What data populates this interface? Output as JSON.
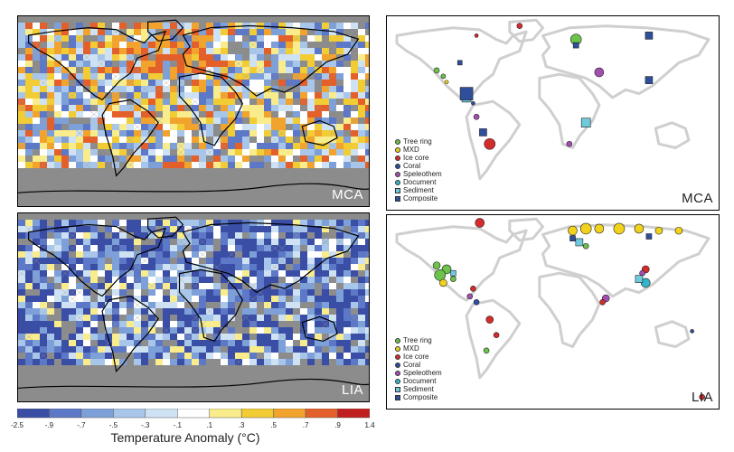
{
  "panels": {
    "mca_anomaly": {
      "label": "MCA"
    },
    "mca_proxy": {
      "label": "MCA"
    },
    "lia_anomaly": {
      "label": "LIA"
    },
    "lia_proxy": {
      "label": "LIA"
    }
  },
  "proxy_legend": [
    {
      "label": "Tree ring",
      "color": "#6cc24a",
      "shape": "circle"
    },
    {
      "label": "MXD",
      "color": "#f2d21b",
      "shape": "circle"
    },
    {
      "label": "Ice core",
      "color": "#d62b2b",
      "shape": "circle"
    },
    {
      "label": "Coral",
      "color": "#2c4fa0",
      "shape": "circle"
    },
    {
      "label": "Speleothem",
      "color": "#a24fb0",
      "shape": "circle"
    },
    {
      "label": "Document",
      "color": "#33b6c9",
      "shape": "circle"
    },
    {
      "label": "Sediment",
      "color": "#6fcbdc",
      "shape": "square"
    },
    {
      "label": "Composite",
      "color": "#2f4f9a",
      "shape": "square"
    }
  ],
  "colorbar": {
    "title": "Temperature Anomaly (°C)",
    "ticks": [
      "-2.5",
      "-.9",
      "-.7",
      "-.5",
      "-.3",
      "-.1",
      ".1",
      ".3",
      ".5",
      ".7",
      ".9",
      "1.4"
    ],
    "colors": [
      "#3b4ea6",
      "#5c78c6",
      "#7ea0d8",
      "#a7c6e9",
      "#cfe2f3",
      "#ffffff",
      "#f8ec8c",
      "#f2cc35",
      "#f1a32e",
      "#e4602a",
      "#c01f1f"
    ]
  },
  "colors": {
    "land_outline": "#000000",
    "ocean_gray": "#8c8c8c",
    "proxy_land": "#cfcfcf"
  }
}
